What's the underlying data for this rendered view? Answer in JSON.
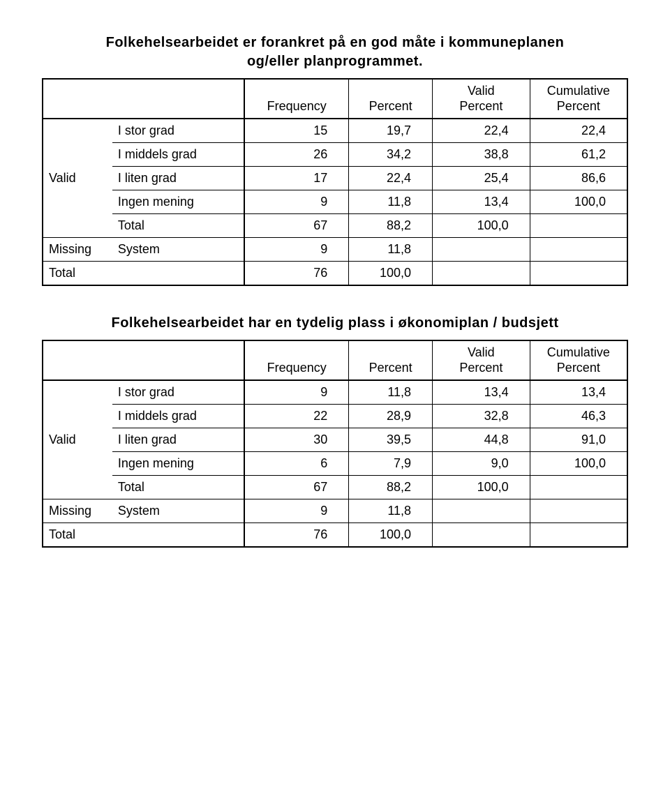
{
  "headers": {
    "frequency": "Frequency",
    "percent": "Percent",
    "valid_percent_l1": "Valid",
    "valid_percent_l2": "Percent",
    "cum_percent_l1": "Cumulative",
    "cum_percent_l2": "Percent"
  },
  "groups": {
    "valid": "Valid",
    "missing": "Missing",
    "total": "Total",
    "subtotal": "Total",
    "system": "System"
  },
  "table1": {
    "title_l1": "Folkehelsearbeidet er forankret på en god måte i kommuneplanen",
    "title_l2": "og/eller planprogrammet.",
    "rows": {
      "r0": {
        "label": "I stor grad",
        "f": "15",
        "p": "19,7",
        "vp": "22,4",
        "cp": "22,4"
      },
      "r1": {
        "label": "I middels grad",
        "f": "26",
        "p": "34,2",
        "vp": "38,8",
        "cp": "61,2"
      },
      "r2": {
        "label": "I liten grad",
        "f": "17",
        "p": "22,4",
        "vp": "25,4",
        "cp": "86,6"
      },
      "r3": {
        "label": "Ingen mening",
        "f": "9",
        "p": "11,8",
        "vp": "13,4",
        "cp": "100,0"
      },
      "sub": {
        "f": "67",
        "p": "88,2",
        "vp": "100,0"
      },
      "sys": {
        "f": "9",
        "p": "11,8"
      },
      "tot": {
        "f": "76",
        "p": "100,0"
      }
    }
  },
  "table2": {
    "title": "Folkehelsearbeidet har en tydelig plass i økonomiplan / budsjett",
    "rows": {
      "r0": {
        "label": "I stor grad",
        "f": "9",
        "p": "11,8",
        "vp": "13,4",
        "cp": "13,4"
      },
      "r1": {
        "label": "I middels grad",
        "f": "22",
        "p": "28,9",
        "vp": "32,8",
        "cp": "46,3"
      },
      "r2": {
        "label": "I liten grad",
        "f": "30",
        "p": "39,5",
        "vp": "44,8",
        "cp": "91,0"
      },
      "r3": {
        "label": "Ingen mening",
        "f": "6",
        "p": "7,9",
        "vp": "9,0",
        "cp": "100,0"
      },
      "sub": {
        "f": "67",
        "p": "88,2",
        "vp": "100,0"
      },
      "sys": {
        "f": "9",
        "p": "11,8"
      },
      "tot": {
        "f": "76",
        "p": "100,0"
      }
    }
  }
}
